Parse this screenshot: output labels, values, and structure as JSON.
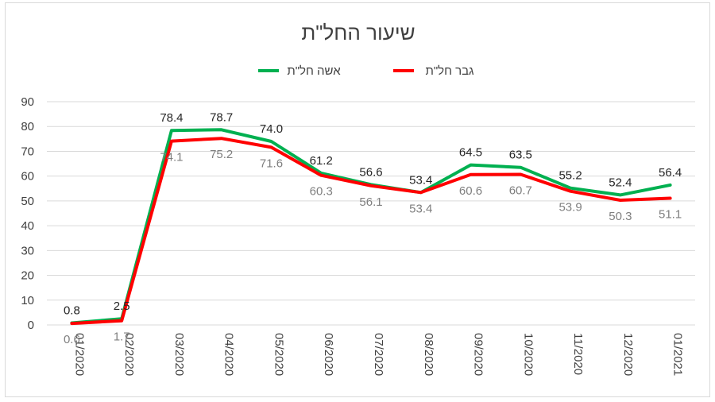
{
  "chart_data": {
    "type": "line",
    "title": "שיעור החל\"ת",
    "categories": [
      "01/2020",
      "02/2020",
      "03/2020",
      "04/2020",
      "05/2020",
      "06/2020",
      "07/2020",
      "08/2020",
      "09/2020",
      "10/2020",
      "11/2020",
      "12/2020",
      "01/2021"
    ],
    "series": [
      {
        "name": "אשה חל\"ת",
        "color": "#00b050",
        "values": [
          0.8,
          2.5,
          78.4,
          78.7,
          74.0,
          61.2,
          56.6,
          53.4,
          64.5,
          63.5,
          55.2,
          52.4,
          56.4
        ]
      },
      {
        "name": "גבר חל\"ת",
        "color": "#ff0000",
        "values": [
          0.6,
          1.7,
          74.1,
          75.2,
          71.6,
          60.3,
          56.1,
          53.4,
          60.6,
          60.7,
          53.9,
          50.3,
          51.1
        ]
      }
    ],
    "ylim": [
      0,
      90
    ],
    "yticks": [
      0,
      10,
      20,
      30,
      40,
      50,
      60,
      70,
      80,
      90
    ],
    "grid": true,
    "legend_position": "top"
  }
}
